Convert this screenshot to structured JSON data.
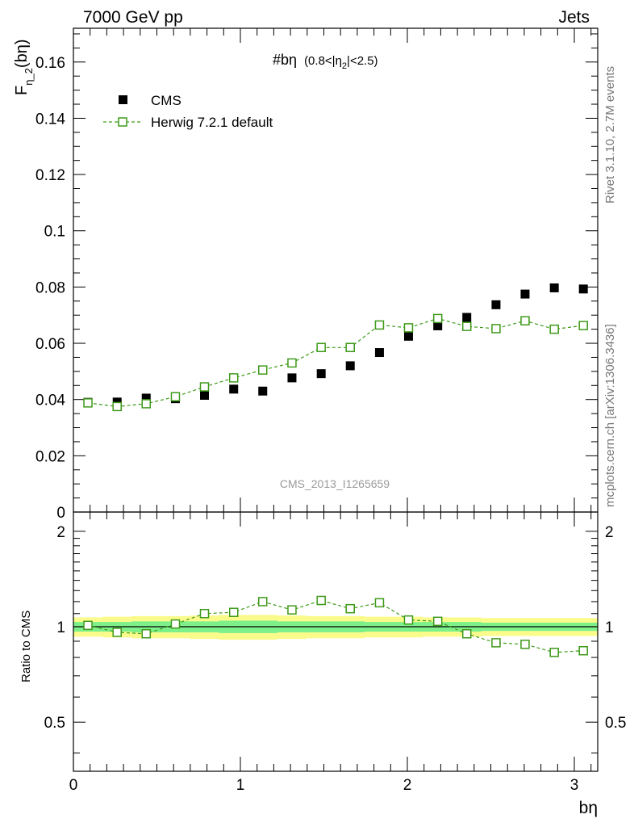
{
  "header": {
    "left": "7000 GeV pp",
    "right": "Jets"
  },
  "side_text": {
    "top": "Rivet 3.1.10,  2.7M events",
    "bottom": "mcplots.cern.ch [arXiv:1306.3436]"
  },
  "watermark": "CMS_2013_I1265659",
  "chart_data": [
    {
      "type": "scatter",
      "panel": "main",
      "title_main": "#bη",
      "title_cut": "(0.8<|η",
      "title_sub": "2",
      "title_cut_end": "|<2.5)",
      "ylabel_main": "F",
      "ylabel_sub": "η_2",
      "ylabel_end": "(bη)",
      "ylim": [
        0,
        0.172
      ],
      "yticks": [
        "0",
        "0.02",
        "0.04",
        "0.06",
        "0.08",
        "0.1",
        "0.12",
        "0.14",
        "0.16"
      ],
      "xlim": [
        0,
        3.14
      ],
      "legend_position": "top-left",
      "series": [
        {
          "name": "CMS",
          "color": "#000000",
          "marker": "filled-square",
          "x": [
            0.087,
            0.262,
            0.436,
            0.611,
            0.785,
            0.96,
            1.134,
            1.309,
            1.484,
            1.658,
            1.833,
            2.007,
            2.182,
            2.356,
            2.531,
            2.705,
            2.88,
            3.054
          ],
          "y": [
            0.039,
            0.0391,
            0.0405,
            0.0403,
            0.0415,
            0.0437,
            0.043,
            0.0477,
            0.0492,
            0.052,
            0.0567,
            0.0625,
            0.0662,
            0.0692,
            0.0737,
            0.0775,
            0.0797,
            0.0793
          ]
        },
        {
          "name": "Herwig 7.2.1 default",
          "color": "#3f9a1a",
          "marker": "open-square-dashed-line",
          "x": [
            0.087,
            0.262,
            0.436,
            0.611,
            0.785,
            0.96,
            1.134,
            1.309,
            1.484,
            1.658,
            1.833,
            2.007,
            2.182,
            2.356,
            2.531,
            2.705,
            2.88,
            3.054
          ],
          "y": [
            0.0388,
            0.0375,
            0.0385,
            0.041,
            0.0445,
            0.0477,
            0.0505,
            0.053,
            0.0585,
            0.0585,
            0.0665,
            0.0655,
            0.0688,
            0.066,
            0.0652,
            0.068,
            0.065,
            0.0663
          ]
        }
      ]
    },
    {
      "type": "line",
      "panel": "ratio",
      "ylabel": "Ratio to CMS",
      "ylim": [
        0.35,
        2.3
      ],
      "yticks": [
        "0.5",
        "1",
        "2"
      ],
      "xlabel": "bη",
      "xticks": [
        "0",
        "1",
        "2",
        "3"
      ],
      "xlim": [
        0,
        3.14
      ],
      "band_colors": {
        "inner": "#7ef08a",
        "outer": "#fbfb8c"
      },
      "series": [
        {
          "name": "Herwig 7.2.1 default",
          "color": "#3f9a1a",
          "x": [
            0.087,
            0.262,
            0.436,
            0.611,
            0.785,
            0.96,
            1.134,
            1.309,
            1.484,
            1.658,
            1.833,
            2.007,
            2.182,
            2.356,
            2.531,
            2.705,
            2.88,
            3.054
          ],
          "y": [
            1.01,
            0.96,
            0.95,
            1.02,
            1.1,
            1.11,
            1.2,
            1.13,
            1.21,
            1.14,
            1.19,
            1.05,
            1.04,
            0.95,
            0.89,
            0.88,
            0.83,
            0.84
          ]
        }
      ]
    }
  ]
}
